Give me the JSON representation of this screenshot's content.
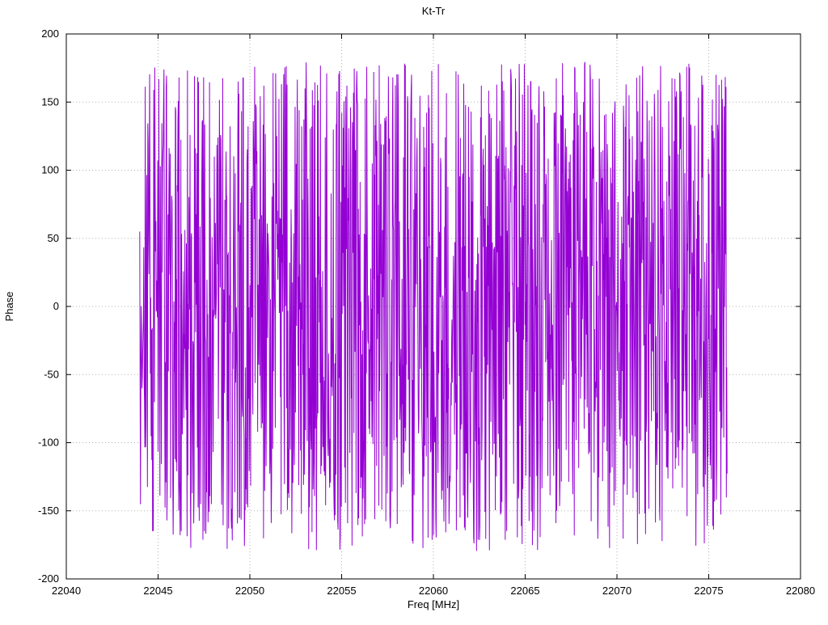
{
  "chart_data": {
    "type": "line",
    "title": "Kt-Tr",
    "xlabel": "Freq [MHz]",
    "ylabel": "Phase",
    "xlim": [
      22040,
      22080
    ],
    "ylim": [
      -200,
      200
    ],
    "x_ticks": [
      22040,
      22045,
      22050,
      22055,
      22060,
      22065,
      22070,
      22075,
      22080
    ],
    "y_ticks": [
      -200,
      -150,
      -100,
      -50,
      0,
      50,
      100,
      150,
      200
    ],
    "grid": true,
    "legend": "none",
    "grid_color": "#b0b0b0",
    "axis_color": "#000000",
    "series": [
      {
        "name": "phase",
        "color": "#9400d3",
        "x_start": 22044.0,
        "x_end": 22076.0,
        "n_points": 1600,
        "y_min": -180,
        "y_max": 180,
        "start_value": 55,
        "walk_step": 160,
        "wrap_span": 360,
        "seed": 1337
      }
    ]
  }
}
